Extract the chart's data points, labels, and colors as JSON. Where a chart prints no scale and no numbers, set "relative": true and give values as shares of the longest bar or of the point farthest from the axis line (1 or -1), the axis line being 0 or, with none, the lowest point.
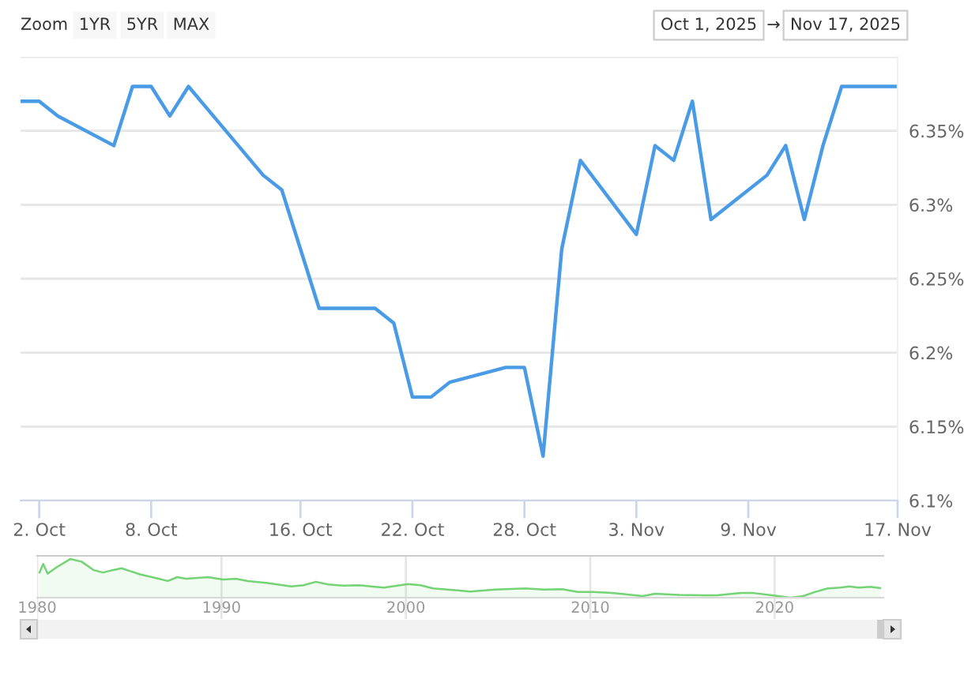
{
  "chart_data": [
    {
      "type": "line",
      "x": [
        "2025-10-01",
        "2025-10-02",
        "2025-10-03",
        "2025-10-06",
        "2025-10-07",
        "2025-10-08",
        "2025-10-09",
        "2025-10-10",
        "2025-10-14",
        "2025-10-15",
        "2025-10-16",
        "2025-10-17",
        "2025-10-20",
        "2025-10-21",
        "2025-10-22",
        "2025-10-23",
        "2025-10-24",
        "2025-10-27",
        "2025-10-28",
        "2025-10-29",
        "2025-10-30",
        "2025-10-31",
        "2025-11-03",
        "2025-11-04",
        "2025-11-05",
        "2025-11-06",
        "2025-11-07",
        "2025-11-10",
        "2025-11-11",
        "2025-11-12",
        "2025-11-13",
        "2025-11-14",
        "2025-11-17"
      ],
      "series": [
        {
          "color": "#4a9be6",
          "values": [
            6.37,
            6.37,
            6.36,
            6.34,
            6.38,
            6.38,
            6.36,
            6.38,
            6.32,
            6.31,
            6.27,
            6.23,
            6.23,
            6.22,
            6.17,
            6.17,
            6.18,
            6.19,
            6.19,
            6.13,
            6.27,
            6.33,
            6.28,
            6.34,
            6.33,
            6.37,
            6.29,
            6.32,
            6.34,
            6.29,
            6.34,
            6.38,
            6.38
          ]
        }
      ],
      "xlim": [
        "2025-10-01",
        "2025-11-17"
      ],
      "xticks": [
        {
          "value": "2025-10-02",
          "label": "2. Oct"
        },
        {
          "value": "2025-10-08",
          "label": "8. Oct"
        },
        {
          "value": "2025-10-16",
          "label": "16. Oct"
        },
        {
          "value": "2025-10-22",
          "label": "22. Oct"
        },
        {
          "value": "2025-10-28",
          "label": "28. Oct"
        },
        {
          "value": "2025-11-03",
          "label": "3. Nov"
        },
        {
          "value": "2025-11-09",
          "label": "9. Nov"
        },
        {
          "value": "2025-11-17",
          "label": "17. Nov"
        }
      ],
      "ylim": [
        6.1,
        6.4
      ],
      "yticks": [
        {
          "value": 6.1,
          "label": "6.1%"
        },
        {
          "value": 6.15,
          "label": "6.15%"
        },
        {
          "value": 6.2,
          "label": "6.2%"
        },
        {
          "value": 6.25,
          "label": "6.25%"
        },
        {
          "value": 6.3,
          "label": "6.3%"
        },
        {
          "value": 6.35,
          "label": "6.35%"
        },
        {
          "value": 6.4,
          "label": null
        }
      ],
      "grid": "y",
      "annotations": [
        "Zoom",
        "1YR",
        "5YR",
        "MAX",
        "Oct 1, 2025",
        "→",
        "Nov 17, 2025"
      ]
    },
    {
      "type": "area",
      "x": [
        1980.13,
        1980.33,
        1980.57,
        1981.07,
        1981.81,
        1982.41,
        1983.08,
        1983.58,
        1984.08,
        1984.58,
        1985.08,
        1985.59,
        1986.42,
        1987.09,
        1987.59,
        1988.09,
        1989.26,
        1990.1,
        1990.77,
        1991.44,
        1992.44,
        1993.78,
        1994.45,
        1995.12,
        1995.79,
        1996.62,
        1997.46,
        1998.8,
        2000.13,
        2000.8,
        2001.47,
        2002.81,
        2003.48,
        2004.82,
        2006.49,
        2007.49,
        2008.49,
        2009.33,
        2010.17,
        2011.17,
        2011.84,
        2012.84,
        2013.51,
        2014.85,
        2016.19,
        2016.86,
        2018.19,
        2018.86,
        2019.87,
        2020.87,
        2021.54,
        2022.21,
        2022.88,
        2023.55,
        2024.05,
        2024.55,
        2025.22,
        2025.72
      ],
      "series": [
        {
          "color": "#74d374",
          "values": [
            0.65,
            0.87,
            0.62,
            0.79,
            1.0,
            0.93,
            0.71,
            0.65,
            0.71,
            0.76,
            0.68,
            0.6,
            0.51,
            0.43,
            0.53,
            0.49,
            0.53,
            0.47,
            0.49,
            0.43,
            0.38,
            0.29,
            0.32,
            0.41,
            0.34,
            0.31,
            0.32,
            0.26,
            0.35,
            0.32,
            0.24,
            0.19,
            0.16,
            0.21,
            0.24,
            0.21,
            0.22,
            0.15,
            0.15,
            0.12,
            0.09,
            0.04,
            0.1,
            0.07,
            0.06,
            0.06,
            0.12,
            0.12,
            0.06,
            0.0,
            0.04,
            0.15,
            0.24,
            0.26,
            0.29,
            0.26,
            0.28,
            0.25
          ]
        }
      ],
      "relative": true,
      "xlim": [
        1980,
        2025.9
      ],
      "xticks": [
        1980,
        1990,
        2000,
        2010,
        2020
      ],
      "tick_labels": "x",
      "grid": "x"
    }
  ]
}
